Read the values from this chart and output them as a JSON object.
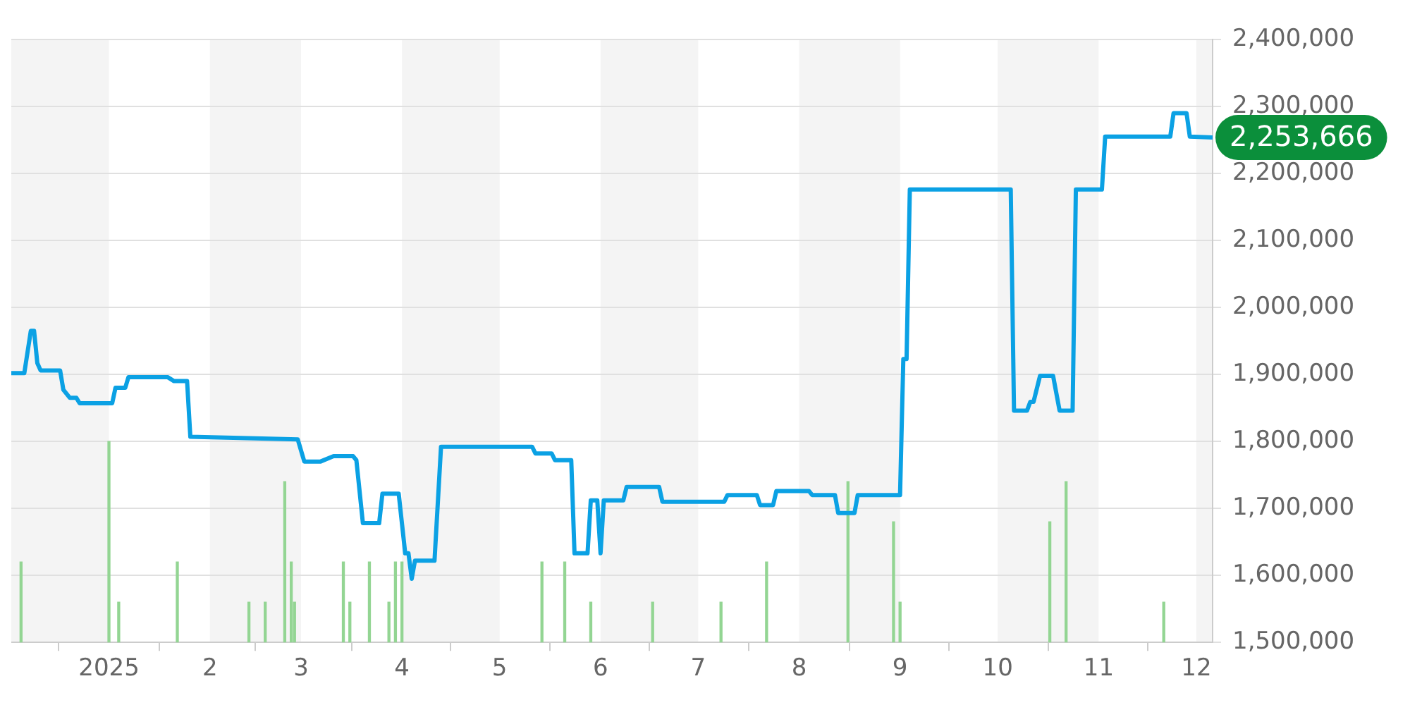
{
  "chart_data": {
    "type": "line",
    "xlim": [
      "2024-12-02",
      "2025-12-06"
    ],
    "xticks": [
      {
        "value": "2025-01-01",
        "label": "2025"
      },
      {
        "value": "2025-02-01",
        "label": "2"
      },
      {
        "value": "2025-03-01",
        "label": "3"
      },
      {
        "value": "2025-04-01",
        "label": "4"
      },
      {
        "value": "2025-05-01",
        "label": "5"
      },
      {
        "value": "2025-06-01",
        "label": "6"
      },
      {
        "value": "2025-07-01",
        "label": "7"
      },
      {
        "value": "2025-08-01",
        "label": "8"
      },
      {
        "value": "2025-09-01",
        "label": "9"
      },
      {
        "value": "2025-10-01",
        "label": "10"
      },
      {
        "value": "2025-11-01",
        "label": "11"
      },
      {
        "value": "2025-12-01",
        "label": "12"
      }
    ],
    "ylim": [
      1500000,
      2400000
    ],
    "yticks": [
      {
        "value": 1500000,
        "label": "1,500,000"
      },
      {
        "value": 1600000,
        "label": "1,600,000"
      },
      {
        "value": 1700000,
        "label": "1,700,000"
      },
      {
        "value": 1800000,
        "label": "1,800,000"
      },
      {
        "value": 1900000,
        "label": "1,900,000"
      },
      {
        "value": 2000000,
        "label": "2,000,000"
      },
      {
        "value": 2100000,
        "label": "2,100,000"
      },
      {
        "value": 2200000,
        "label": "2,200,000"
      },
      {
        "value": 2300000,
        "label": "2,300,000"
      },
      {
        "value": 2400000,
        "label": "2,400,000"
      }
    ],
    "grid": "y",
    "legend": false,
    "marker": "none",
    "series": [
      {
        "type": "bar",
        "color": "#93d593",
        "x": [
          "2024-12-05",
          "2025-01-01",
          "2025-01-04",
          "2025-01-22",
          "2025-02-13",
          "2025-02-18",
          "2025-02-24",
          "2025-02-26",
          "2025-02-27",
          "2025-03-14",
          "2025-03-16",
          "2025-03-22",
          "2025-03-28",
          "2025-03-30",
          "2025-04-01",
          "2025-05-14",
          "2025-05-21",
          "2025-05-29",
          "2025-06-17",
          "2025-07-08",
          "2025-07-22",
          "2025-08-16",
          "2025-08-30",
          "2025-09-01",
          "2025-10-17",
          "2025-10-22",
          "2025-11-21"
        ],
        "values": [
          1620000,
          1800000,
          1560000,
          1620000,
          1560000,
          1560000,
          1740000,
          1620000,
          1560000,
          1620000,
          1560000,
          1620000,
          1560000,
          1620000,
          1620000,
          1620000,
          1620000,
          1560000,
          1560000,
          1560000,
          1620000,
          1740000,
          1680000,
          1560000,
          1680000,
          1740000,
          1560000
        ]
      },
      {
        "color": "#0ba1e4",
        "x": [
          "2024-12-02",
          "2024-12-06",
          "2024-12-08",
          "2024-12-09",
          "2024-12-10",
          "2024-12-11",
          "2024-12-17",
          "2024-12-18",
          "2024-12-20",
          "2024-12-22",
          "2024-12-23",
          "2025-01-02",
          "2025-01-03",
          "2025-01-06",
          "2025-01-07",
          "2025-01-19",
          "2025-01-21",
          "2025-01-25",
          "2025-01-26",
          "2025-02-28",
          "2025-03-02",
          "2025-03-07",
          "2025-03-11",
          "2025-03-17",
          "2025-03-18",
          "2025-03-20",
          "2025-03-25",
          "2025-03-26",
          "2025-03-31",
          "2025-04-02",
          "2025-04-03",
          "2025-04-04",
          "2025-04-05",
          "2025-04-11",
          "2025-04-13",
          "2025-05-11",
          "2025-05-12",
          "2025-05-17",
          "2025-05-18",
          "2025-05-23",
          "2025-05-24",
          "2025-05-28",
          "2025-05-29",
          "2025-05-31",
          "2025-06-01",
          "2025-06-02",
          "2025-06-08",
          "2025-06-09",
          "2025-06-19",
          "2025-06-20",
          "2025-07-09",
          "2025-07-10",
          "2025-07-19",
          "2025-07-20",
          "2025-07-24",
          "2025-07-25",
          "2025-08-04",
          "2025-08-05",
          "2025-08-12",
          "2025-08-13",
          "2025-08-18",
          "2025-08-19",
          "2025-09-01",
          "2025-09-02",
          "2025-09-03",
          "2025-09-04",
          "2025-10-05",
          "2025-10-06",
          "2025-10-10",
          "2025-10-11",
          "2025-10-12",
          "2025-10-14",
          "2025-10-18",
          "2025-10-20",
          "2025-10-24",
          "2025-10-25",
          "2025-11-02",
          "2025-11-03",
          "2025-11-23",
          "2025-11-24",
          "2025-11-28",
          "2025-11-29",
          "2025-12-06"
        ],
        "values": [
          1902000,
          1902000,
          1965000,
          1965000,
          1917000,
          1906000,
          1906000,
          1877000,
          1865000,
          1865000,
          1857000,
          1857000,
          1880000,
          1880000,
          1896000,
          1896000,
          1890000,
          1890000,
          1807000,
          1803000,
          1770000,
          1770000,
          1778000,
          1778000,
          1772000,
          1678000,
          1678000,
          1722000,
          1722000,
          1633000,
          1633000,
          1595000,
          1622000,
          1622000,
          1792000,
          1792000,
          1782000,
          1782000,
          1772000,
          1772000,
          1633000,
          1633000,
          1712000,
          1712000,
          1633000,
          1712000,
          1712000,
          1732000,
          1732000,
          1710000,
          1710000,
          1720000,
          1720000,
          1705000,
          1705000,
          1726000,
          1726000,
          1720000,
          1720000,
          1693000,
          1693000,
          1720000,
          1720000,
          1923000,
          1923000,
          2176000,
          2176000,
          1846000,
          1846000,
          1859000,
          1859000,
          1898000,
          1898000,
          1846000,
          1846000,
          2176000,
          2176000,
          2255000,
          2255000,
          2290000,
          2290000,
          2255000,
          2253666
        ]
      }
    ],
    "bands": [
      {
        "axis": "x",
        "from": "2024-12-02",
        "to": "2025-01-01",
        "color": "#f4f4f4"
      },
      {
        "axis": "x",
        "from": "2025-02-01",
        "to": "2025-03-01",
        "color": "#f4f4f4"
      },
      {
        "axis": "x",
        "from": "2025-04-01",
        "to": "2025-05-01",
        "color": "#f4f4f4"
      },
      {
        "axis": "x",
        "from": "2025-06-01",
        "to": "2025-07-01",
        "color": "#f4f4f4"
      },
      {
        "axis": "x",
        "from": "2025-08-01",
        "to": "2025-09-01",
        "color": "#f4f4f4"
      },
      {
        "axis": "x",
        "from": "2025-10-01",
        "to": "2025-11-01",
        "color": "#f4f4f4"
      },
      {
        "axis": "x",
        "from": "2025-12-01",
        "to": "2025-12-06",
        "color": "#f4f4f4"
      }
    ],
    "annotations": [
      {
        "text": "2,253,666",
        "x": "2025-12-06",
        "y": 2253666
      }
    ]
  }
}
